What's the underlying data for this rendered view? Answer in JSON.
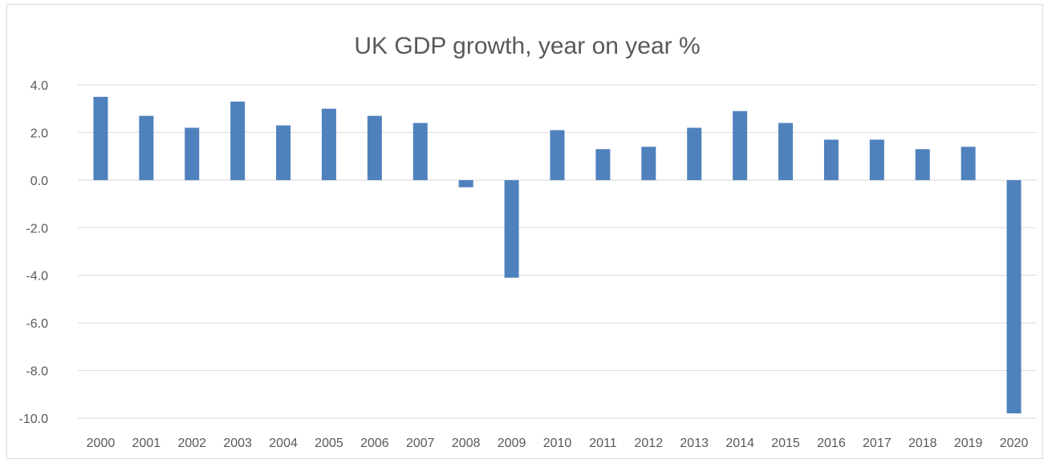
{
  "chart_data": {
    "type": "bar",
    "title": "UK GDP growth, year on year %",
    "xlabel": "",
    "ylabel": "",
    "categories": [
      "2000",
      "2001",
      "2002",
      "2003",
      "2004",
      "2005",
      "2006",
      "2007",
      "2008",
      "2009",
      "2010",
      "2011",
      "2012",
      "2013",
      "2014",
      "2015",
      "2016",
      "2017",
      "2018",
      "2019",
      "2020"
    ],
    "values": [
      3.5,
      2.7,
      2.2,
      3.3,
      2.3,
      3.0,
      2.7,
      2.4,
      -0.3,
      -4.1,
      2.1,
      1.3,
      1.4,
      2.2,
      2.9,
      2.4,
      1.7,
      1.7,
      1.3,
      1.4,
      -9.8
    ],
    "ylim": [
      -10,
      4
    ],
    "yticks": [
      "4.0",
      "2.0",
      "0.0",
      "-2.0",
      "-4.0",
      "-6.0",
      "-8.0",
      "-10.0"
    ],
    "ytick_values": [
      4,
      2,
      0,
      -2,
      -4,
      -6,
      -8,
      -10
    ],
    "grid": true,
    "legend": "none",
    "bar_color": "#4f81bd",
    "grid_color": "#d9d9d9"
  }
}
